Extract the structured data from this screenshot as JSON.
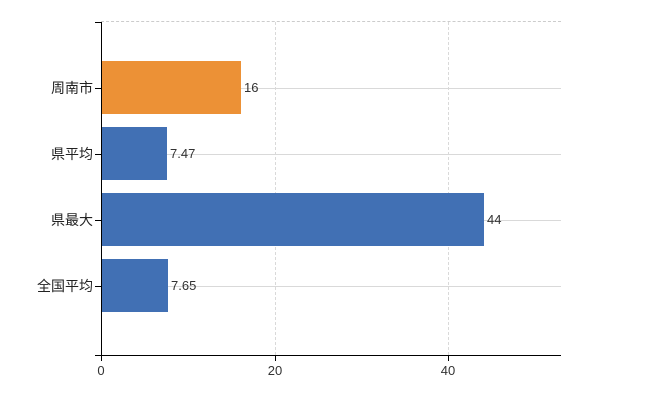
{
  "chart_data": {
    "type": "bar",
    "orientation": "horizontal",
    "title": "",
    "xlabel": "",
    "ylabel": "",
    "categories": [
      "周南市",
      "県平均",
      "県最大",
      "全国平均"
    ],
    "values": [
      16,
      7.47,
      44,
      7.65
    ],
    "value_labels": [
      "16",
      "7.47",
      "44",
      "7.65"
    ],
    "bar_colors": [
      "#ec9136",
      "#4170b4",
      "#4170b4",
      "#4170b4"
    ],
    "x_ticks": [
      {
        "value": 0,
        "label": "0"
      },
      {
        "value": 20,
        "label": "20"
      },
      {
        "value": 40,
        "label": "40"
      }
    ],
    "xlim": [
      0,
      53
    ],
    "grid": true,
    "legend": null,
    "colors": {
      "orange": "#ec9136",
      "blue": "#4170b4",
      "gridline": "#d9d9d9",
      "top_border": "#cccccc",
      "axis": "#000000",
      "text": "#333333",
      "background": "#ffffff"
    }
  }
}
